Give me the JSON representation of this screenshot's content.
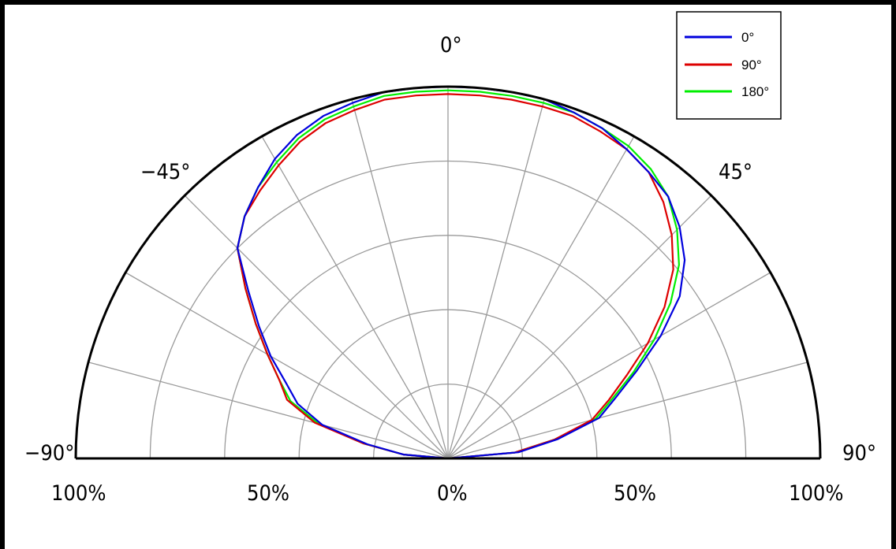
{
  "chart_data": {
    "type": "line",
    "subtype": "polar-half",
    "title": "",
    "angle_range": [
      -90,
      90
    ],
    "radius_range": [
      0,
      100
    ],
    "angle_tick_labels": [
      {
        "angle": -90,
        "label": "−90°"
      },
      {
        "angle": -45,
        "label": "−45°"
      },
      {
        "angle": 0,
        "label": "0°"
      },
      {
        "angle": 45,
        "label": "45°"
      },
      {
        "angle": 90,
        "label": "90°"
      }
    ],
    "radius_tick_labels": [
      {
        "side": "left",
        "value": 100,
        "label": "100%"
      },
      {
        "side": "left",
        "value": 50,
        "label": "50%"
      },
      {
        "side": "center",
        "value": 0,
        "label": "0%"
      },
      {
        "side": "right",
        "value": 50,
        "label": "50%"
      },
      {
        "side": "right",
        "value": 100,
        "label": "100%"
      }
    ],
    "grid": true,
    "grid_angle_step": 15,
    "grid_radius_step": 20,
    "legend_position": "top-right",
    "angles": [
      -90,
      -85,
      -80,
      -75,
      -70,
      -65,
      -60,
      -55,
      -50,
      -45,
      -40,
      -35,
      -30,
      -25,
      -20,
      -15,
      -10,
      -5,
      0,
      5,
      10,
      15,
      20,
      25,
      30,
      35,
      40,
      45,
      50,
      55,
      60,
      65,
      70,
      75,
      80,
      85,
      90
    ],
    "series": [
      {
        "name": "0°",
        "color": "#0000dd",
        "values": [
          0,
          12,
          22,
          35,
          43,
          48,
          55,
          62,
          70,
          80,
          85,
          89,
          93,
          96,
          98,
          99,
          100,
          100,
          100,
          100,
          100,
          100,
          99,
          98,
          96,
          94,
          92,
          88,
          83,
          76,
          66,
          56,
          48,
          42,
          30,
          19,
          0
        ]
      },
      {
        "name": "90°",
        "color": "#dd0000",
        "values": [
          0,
          12,
          23,
          37,
          46,
          50,
          56,
          63,
          71,
          80,
          85,
          88,
          91,
          94,
          96,
          97,
          98,
          98,
          98,
          98,
          98,
          98,
          98,
          97,
          96,
          94,
          90,
          85,
          79,
          71,
          62,
          53,
          46,
          40,
          29,
          18,
          0
        ]
      },
      {
        "name": "180°",
        "color": "#00ee00",
        "values": [
          0,
          12,
          23,
          36,
          45,
          50,
          56,
          63,
          71,
          80,
          85,
          89,
          92,
          95,
          97,
          98,
          99,
          99,
          99,
          99,
          99,
          99,
          99,
          98,
          97,
          95,
          92,
          87,
          81,
          73,
          64,
          55,
          47,
          41,
          29,
          18,
          0
        ]
      }
    ]
  }
}
